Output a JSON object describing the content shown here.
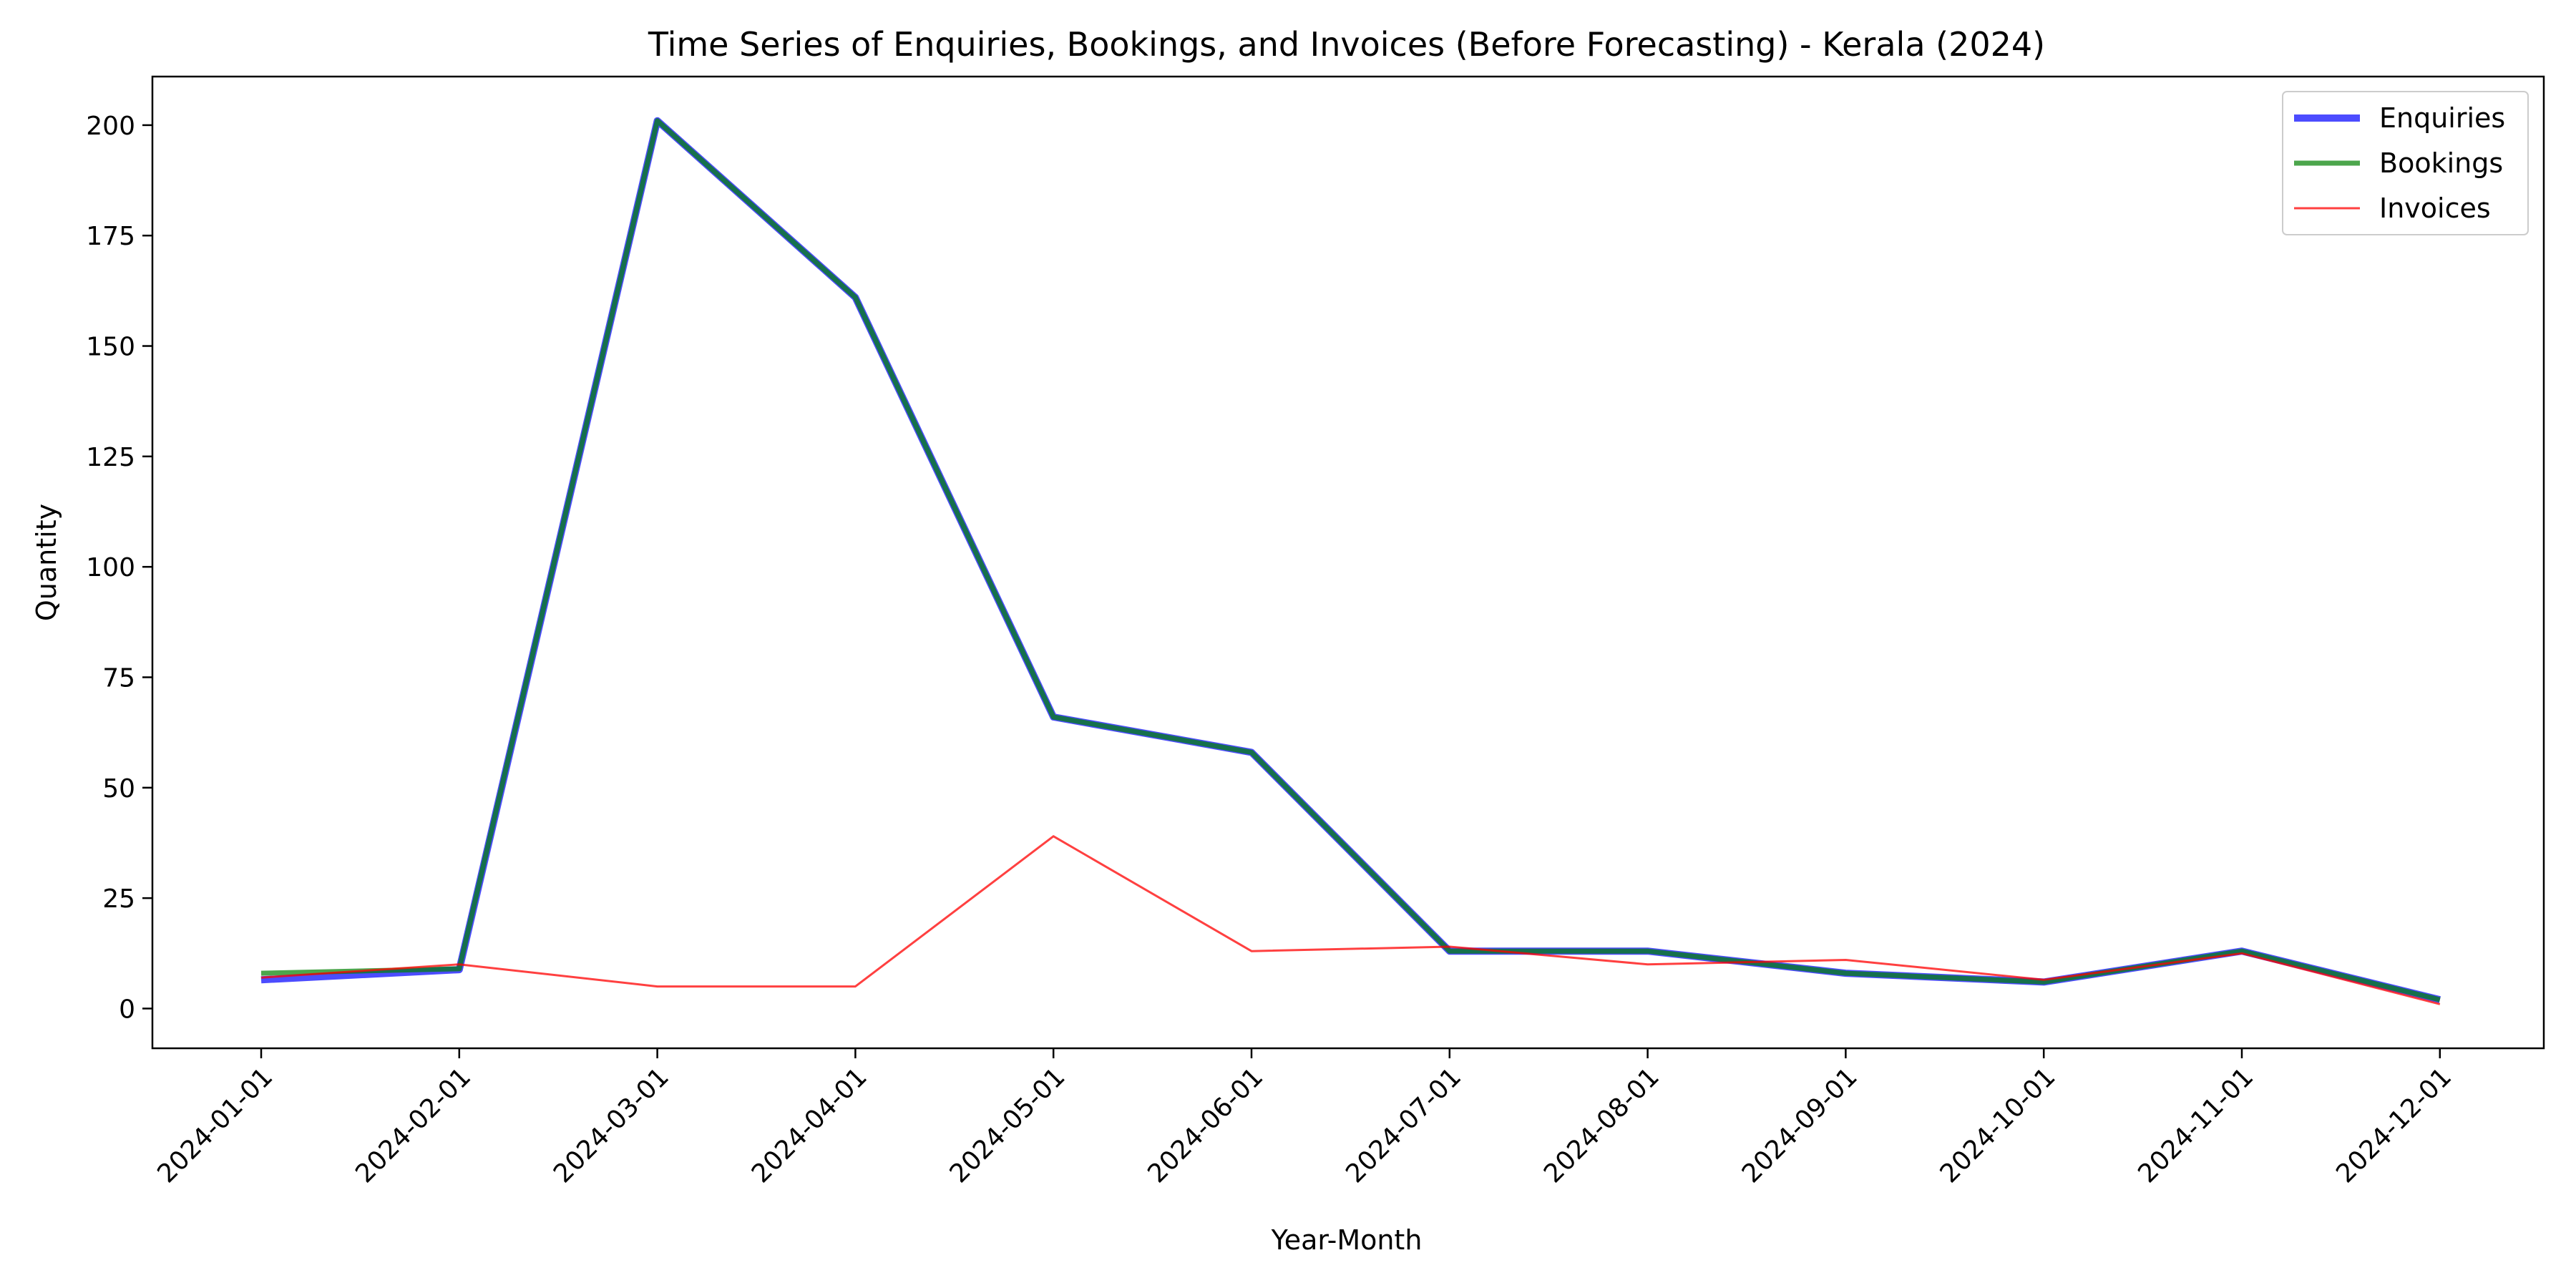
{
  "chart_data": {
    "type": "line",
    "title": "Time Series of Enquiries, Bookings, and Invoices (Before Forecasting) - Kerala (2024)",
    "xlabel": "Year-Month",
    "ylabel": "Quantity",
    "categories": [
      "2024-01-01",
      "2024-02-01",
      "2024-03-01",
      "2024-04-01",
      "2024-05-01",
      "2024-06-01",
      "2024-07-01",
      "2024-08-01",
      "2024-09-01",
      "2024-10-01",
      "2024-11-01",
      "2024-12-01"
    ],
    "yticks": [
      0,
      25,
      50,
      75,
      100,
      125,
      150,
      175,
      200
    ],
    "ylim": [
      -9,
      211
    ],
    "grid": false,
    "legend_position": "top-right",
    "series": [
      {
        "name": "Enquiries",
        "color": "#0000ff",
        "values": [
          6.5,
          8.8,
          201,
          161,
          66,
          58,
          13,
          13,
          8,
          6,
          13,
          2
        ]
      },
      {
        "name": "Bookings",
        "color": "#008000",
        "values": [
          8,
          9,
          201,
          161,
          66,
          58,
          13,
          13,
          8,
          6,
          13,
          2
        ]
      },
      {
        "name": "Invoices",
        "color": "#ff0000",
        "values": [
          7,
          10,
          5,
          5,
          39,
          13,
          14,
          10,
          11,
          6.5,
          12.5,
          1
        ]
      }
    ]
  }
}
